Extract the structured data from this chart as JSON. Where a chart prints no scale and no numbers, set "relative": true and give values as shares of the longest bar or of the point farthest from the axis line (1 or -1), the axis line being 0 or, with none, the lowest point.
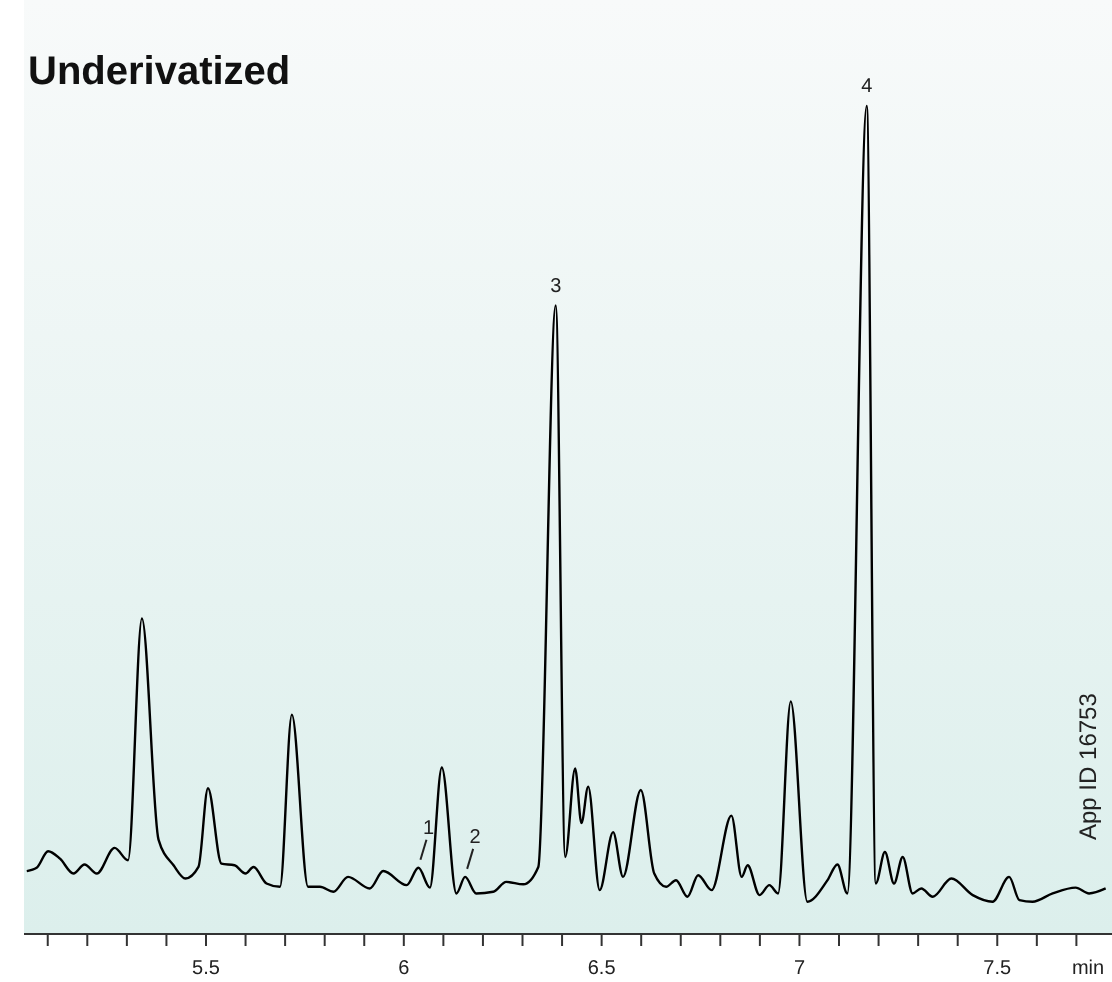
{
  "chart_data": {
    "type": "line",
    "title": "Underivatized",
    "xlabel": "min",
    "relative": true,
    "x": [
      5.047,
      5.072,
      5.101,
      5.131,
      5.165,
      5.193,
      5.224,
      5.269,
      5.303,
      5.338,
      5.38,
      5.418,
      5.448,
      5.481,
      5.505,
      5.539,
      5.572,
      5.6,
      5.62,
      5.653,
      5.687,
      5.717,
      5.758,
      5.788,
      5.822,
      5.859,
      5.914,
      5.948,
      6.007,
      6.037,
      6.066,
      6.096,
      6.133,
      6.155,
      6.183,
      6.226,
      6.259,
      6.302,
      6.34,
      6.384,
      6.408,
      6.433,
      6.449,
      6.466,
      6.495,
      6.529,
      6.554,
      6.599,
      6.633,
      6.663,
      6.688,
      6.717,
      6.744,
      6.778,
      6.828,
      6.854,
      6.869,
      6.899,
      6.924,
      6.946,
      6.978,
      7.02,
      7.071,
      7.096,
      7.121,
      7.17,
      7.193,
      7.216,
      7.239,
      7.261,
      7.286,
      7.308,
      7.337,
      7.384,
      7.438,
      7.488,
      7.53,
      7.556,
      7.589,
      7.64,
      7.698,
      7.732,
      7.774
    ],
    "series": [
      {
        "color": "#000000",
        "values": [
          0.076,
          0.08,
          0.1,
          0.091,
          0.073,
          0.084,
          0.073,
          0.104,
          0.089,
          0.381,
          0.114,
          0.083,
          0.067,
          0.081,
          0.176,
          0.085,
          0.083,
          0.073,
          0.081,
          0.061,
          0.057,
          0.265,
          0.057,
          0.057,
          0.051,
          0.069,
          0.055,
          0.076,
          0.059,
          0.08,
          0.056,
          0.201,
          0.049,
          0.069,
          0.049,
          0.051,
          0.063,
          0.06,
          0.081,
          0.759,
          0.093,
          0.2,
          0.134,
          0.178,
          0.053,
          0.123,
          0.069,
          0.174,
          0.073,
          0.057,
          0.065,
          0.045,
          0.071,
          0.053,
          0.143,
          0.069,
          0.083,
          0.047,
          0.059,
          0.049,
          0.281,
          0.039,
          0.065,
          0.084,
          0.049,
          1.0,
          0.061,
          0.099,
          0.061,
          0.093,
          0.049,
          0.055,
          0.045,
          0.067,
          0.047,
          0.039,
          0.069,
          0.041,
          0.039,
          0.049,
          0.056,
          0.049,
          0.055
        ]
      }
    ],
    "xlim": [
      5.04,
      7.79
    ],
    "xticks": [
      {
        "value": 5.1,
        "label": null
      },
      {
        "value": 5.2,
        "label": null
      },
      {
        "value": 5.3,
        "label": null
      },
      {
        "value": 5.4,
        "label": null
      },
      {
        "value": 5.5,
        "label": "5.5"
      },
      {
        "value": 5.6,
        "label": null
      },
      {
        "value": 5.7,
        "label": null
      },
      {
        "value": 5.8,
        "label": null
      },
      {
        "value": 5.9,
        "label": null
      },
      6,
      {
        "value": 6.1,
        "label": null
      },
      {
        "value": 6.2,
        "label": null
      },
      {
        "value": 6.3,
        "label": null
      },
      {
        "value": 6.4,
        "label": null
      },
      6.5,
      {
        "value": 6.6,
        "label": null
      },
      {
        "value": 6.7,
        "label": null
      },
      {
        "value": 6.8,
        "label": null
      },
      {
        "value": 6.9,
        "label": null
      },
      7,
      {
        "value": 7.1,
        "label": null
      },
      {
        "value": 7.2,
        "label": null
      },
      {
        "value": 7.3,
        "label": null
      },
      {
        "value": 7.4,
        "label": null
      },
      7.5,
      {
        "value": 7.6,
        "label": null
      },
      {
        "value": 7.7,
        "label": null
      }
    ],
    "annotations": [
      {
        "text": "1",
        "x": 6.037,
        "y": 0.08
      },
      {
        "text": "2",
        "x": 6.155,
        "y": 0.069
      },
      {
        "text": "3",
        "x": 6.384,
        "y": 0.759
      },
      {
        "text": "4",
        "x": 7.17,
        "y": 1.0
      },
      "App ID 16753"
    ],
    "grid": false,
    "marker": "none",
    "line_style": "solid"
  }
}
